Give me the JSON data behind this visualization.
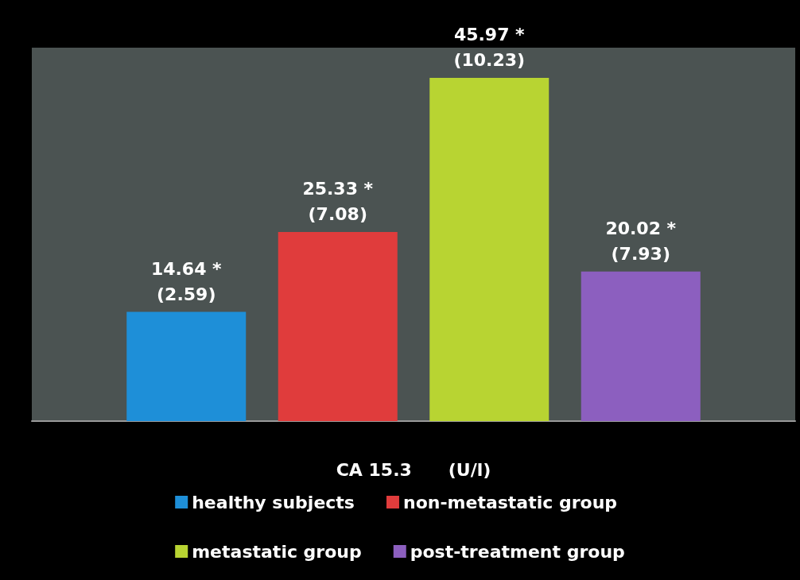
{
  "chart_data": {
    "type": "bar",
    "xlabel": "CA 15.3      (U/l)",
    "categories": [
      null
    ],
    "series": [
      {
        "name": "healthy subjects",
        "color": "#1e8fd8",
        "values": [
          14.64
        ],
        "value_labels": [
          "14.64 *\n(2.59)"
        ]
      },
      {
        "name": "non-metastatic group",
        "color": "#e03c3c",
        "values": [
          25.33
        ],
        "value_labels": [
          "25.33 *\n(7.08)"
        ]
      },
      {
        "name": "metastatic group",
        "color": "#b8d432",
        "values": [
          45.97
        ],
        "value_labels": [
          "45.97 *\n(10.23)"
        ]
      },
      {
        "name": "post-treatment group",
        "color": "#8c5fbf",
        "values": [
          20.02
        ],
        "value_labels": [
          "20.02 *\n(7.93)"
        ]
      }
    ],
    "legend": "bottom"
  }
}
